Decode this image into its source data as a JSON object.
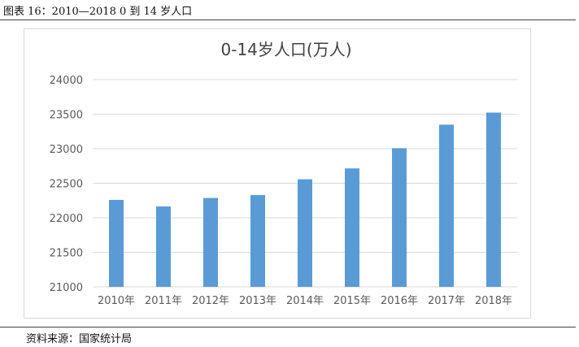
{
  "figure_caption": "图表 16：2010—2018 0 到 14 岁人口",
  "source_note": "资料来源：国家统计局",
  "colors": {
    "bar": "#5b9bd5",
    "grid": "#d9d9d9",
    "axis_text": "#595959",
    "title_text": "#404040"
  },
  "chart_data": {
    "type": "bar",
    "title": "0-14岁人口(万人)",
    "categories": [
      "2010年",
      "2011年",
      "2012年",
      "2013年",
      "2014年",
      "2015年",
      "2016年",
      "2017年",
      "2018年"
    ],
    "values": [
      22259,
      22164,
      22287,
      22329,
      22558,
      22715,
      23008,
      23348,
      23523
    ],
    "ylim": [
      21000,
      24000
    ],
    "yticks": [
      21000,
      21500,
      22000,
      22500,
      23000,
      23500,
      24000
    ],
    "xlabel": "",
    "ylabel": "",
    "grid": true,
    "legend": "none"
  }
}
